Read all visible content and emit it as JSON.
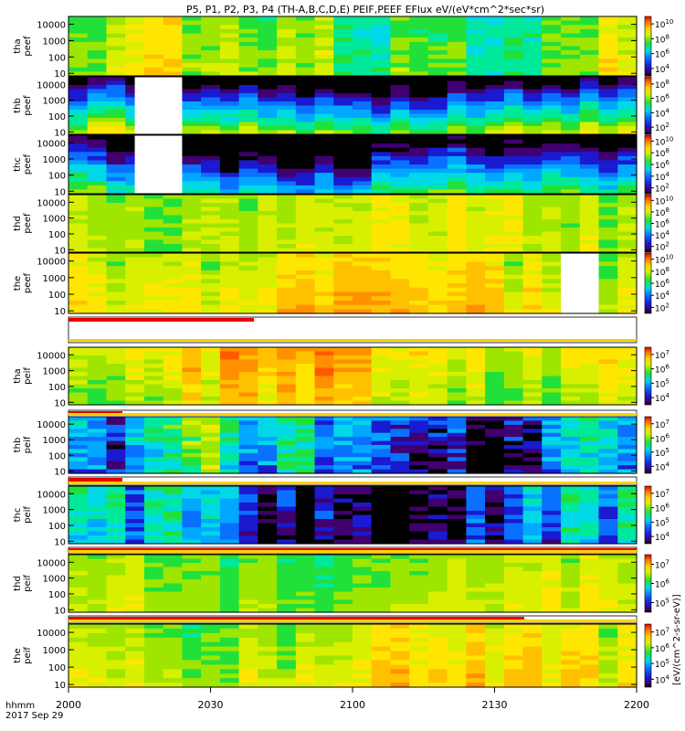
{
  "title": "P5, P1, P2, P3, P4 (TH-A,B,C,D,E) PEIF,PEEF EFlux eV/(eV*cm^2*sec*sr)",
  "colorbar_unit": "[eV/(cm^2-s-sr-eV)]",
  "x_tick_labels": [
    "2000",
    "2030",
    "2100",
    "2130",
    "2200"
  ],
  "x_corner_label": "hhmm",
  "date_label": "2017 Sep 29",
  "chart_data": [
    {
      "type": "heatmap",
      "panel": "tha peef",
      "ylabel": [
        "tha",
        "peef"
      ],
      "yticks": [
        "10",
        "100",
        "1000",
        "10000"
      ],
      "ylim": [
        7,
        30000
      ],
      "yscale": "log",
      "xlim": [
        "2000",
        "2200"
      ],
      "cbar_labels": [
        "10^4",
        "10^6",
        "10^8",
        "10^10"
      ],
      "gaps": []
    },
    {
      "type": "heatmap",
      "panel": "thb peef",
      "ylabel": [
        "thb",
        "peef"
      ],
      "yticks": [
        "10",
        "100",
        "1000",
        "10000"
      ],
      "ylim": [
        7,
        30000
      ],
      "yscale": "log",
      "xlim": [
        "2000",
        "2200"
      ],
      "cbar_labels": [
        "10^2",
        "10^4",
        "10^6",
        "10^8"
      ],
      "gaps": [
        [
          "2014",
          "2024"
        ]
      ]
    },
    {
      "type": "heatmap",
      "panel": "thc peef",
      "ylabel": [
        "thc",
        "peef"
      ],
      "yticks": [
        "10",
        "100",
        "1000",
        "10000"
      ],
      "ylim": [
        7,
        30000
      ],
      "yscale": "log",
      "xlim": [
        "2000",
        "2200"
      ],
      "cbar_labels": [
        "10^2",
        "10^4",
        "10^6",
        "10^8",
        "10^10"
      ],
      "gaps": [
        [
          "2014",
          "2024"
        ]
      ]
    },
    {
      "type": "heatmap",
      "panel": "thd peef",
      "ylabel": [
        "thd",
        "peef"
      ],
      "yticks": [
        "10",
        "100",
        "1000",
        "10000"
      ],
      "ylim": [
        7,
        30000
      ],
      "yscale": "log",
      "xlim": [
        "2000",
        "2200"
      ],
      "cbar_labels": [
        "10^2",
        "10^4",
        "10^6",
        "10^8",
        "10^10"
      ],
      "gaps": []
    },
    {
      "type": "heatmap",
      "panel": "the peef",
      "ylabel": [
        "the",
        "peef"
      ],
      "yticks": [
        "10",
        "100",
        "1000",
        "10000"
      ],
      "ylim": [
        7,
        30000
      ],
      "yscale": "log",
      "xlim": [
        "2000",
        "2200"
      ],
      "cbar_labels": [
        "10^2",
        "10^4",
        "10^6",
        "10^8",
        "10^10"
      ],
      "gaps": [
        [
          "2144",
          "2152"
        ]
      ]
    },
    {
      "type": "heatmap",
      "panel": "tha peif",
      "ylabel": [
        "tha",
        "peif"
      ],
      "yticks": [
        "10",
        "100",
        "1000",
        "10000"
      ],
      "ylim": [
        7,
        30000
      ],
      "yscale": "log",
      "xlim": [
        "2000",
        "2200"
      ],
      "cbar_labels": [
        "10^4",
        "10^5",
        "10^6",
        "10^7"
      ],
      "gaps": []
    },
    {
      "type": "heatmap",
      "panel": "thb peif",
      "ylabel": [
        "thb",
        "peif"
      ],
      "yticks": [
        "10",
        "100",
        "1000",
        "10000"
      ],
      "ylim": [
        7,
        30000
      ],
      "yscale": "log",
      "xlim": [
        "2000",
        "2200"
      ],
      "cbar_labels": [
        "10^4",
        "10^5",
        "10^6",
        "10^7"
      ],
      "gaps": []
    },
    {
      "type": "heatmap",
      "panel": "thc peif",
      "ylabel": [
        "thc",
        "peif"
      ],
      "yticks": [
        "10",
        "100",
        "1000",
        "10000"
      ],
      "ylim": [
        7,
        30000
      ],
      "yscale": "log",
      "xlim": [
        "2000",
        "2200"
      ],
      "cbar_labels": [
        "10^4",
        "10^5",
        "10^6",
        "10^7"
      ],
      "gaps": []
    },
    {
      "type": "heatmap",
      "panel": "thd peif",
      "ylabel": [
        "thd",
        "peif"
      ],
      "yticks": [
        "10",
        "100",
        "1000",
        "10000"
      ],
      "ylim": [
        7,
        30000
      ],
      "yscale": "log",
      "xlim": [
        "2000",
        "2200"
      ],
      "cbar_labels": [
        "10^5",
        "10^6",
        "10^7"
      ],
      "gaps": []
    },
    {
      "type": "heatmap",
      "panel": "the peif",
      "ylabel": [
        "the",
        "peif"
      ],
      "yticks": [
        "10",
        "100",
        "1000",
        "10000"
      ],
      "ylim": [
        7,
        30000
      ],
      "yscale": "log",
      "xlim": [
        "2000",
        "2200"
      ],
      "cbar_labels": [
        "10^4",
        "10^5",
        "10^6",
        "10^7"
      ],
      "gaps": []
    }
  ]
}
